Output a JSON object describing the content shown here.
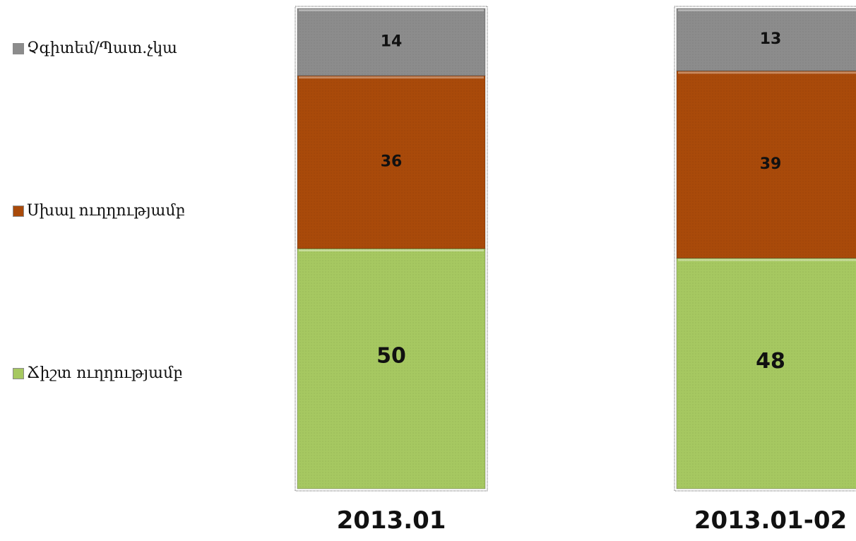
{
  "chart_data": {
    "type": "bar",
    "stacked": true,
    "orientation": "vertical",
    "categories": [
      "2013.01",
      "2013.01-02"
    ],
    "series": [
      {
        "name": "Ճիշտ ուղղությամբ",
        "values": [
          50,
          48
        ],
        "color": "#a6c861"
      },
      {
        "name": "Սխալ ուղղությամբ",
        "values": [
          36,
          39
        ],
        "color": "#a94a0a"
      },
      {
        "name": "Չգիտեմ/Պատ.չկա",
        "values": [
          14,
          13
        ],
        "color": "#8c8c8c"
      }
    ],
    "legend_order": [
      "Չգիտեմ/Պատ.չկա",
      "Սխալ ուղղությամբ",
      "Ճիշտ ուղղությամբ"
    ],
    "legend_position": "left",
    "ylim": [
      0,
      100
    ],
    "title": "",
    "xlabel": "",
    "ylabel": "",
    "grid": false
  }
}
